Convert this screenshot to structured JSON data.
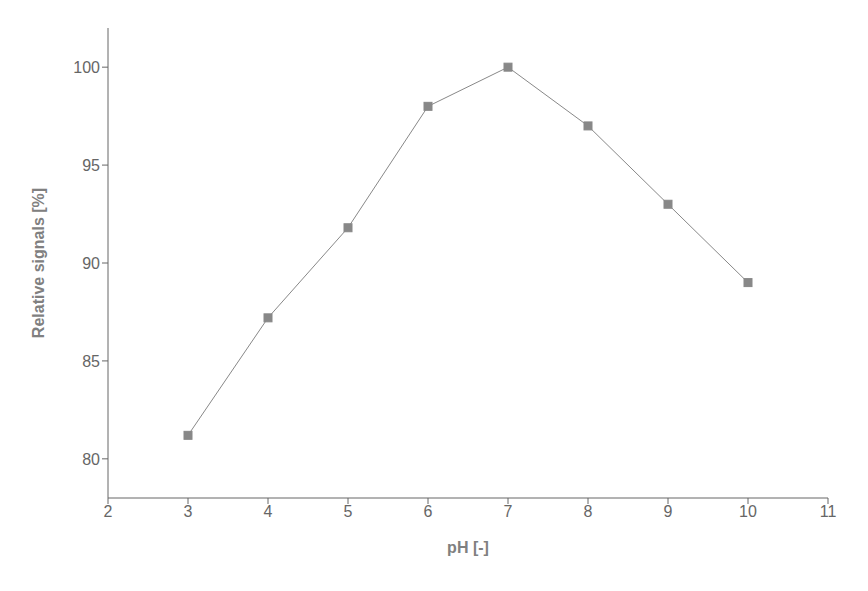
{
  "chart_data": {
    "type": "line",
    "x": [
      3,
      4,
      5,
      6,
      7,
      8,
      9,
      10
    ],
    "values": [
      81.2,
      87.2,
      91.8,
      98.0,
      100.0,
      97.0,
      93.0,
      89.0
    ],
    "xlabel": "pH [-]",
    "ylabel": "Relative signals [%]",
    "xlim": [
      2,
      11
    ],
    "ylim": [
      78,
      102
    ],
    "xticks": [
      2,
      3,
      4,
      5,
      6,
      7,
      8,
      9,
      10,
      11
    ],
    "yticks": [
      80,
      85,
      90,
      95,
      100
    ],
    "color": "#888888",
    "marker": "square",
    "grid": false
  }
}
